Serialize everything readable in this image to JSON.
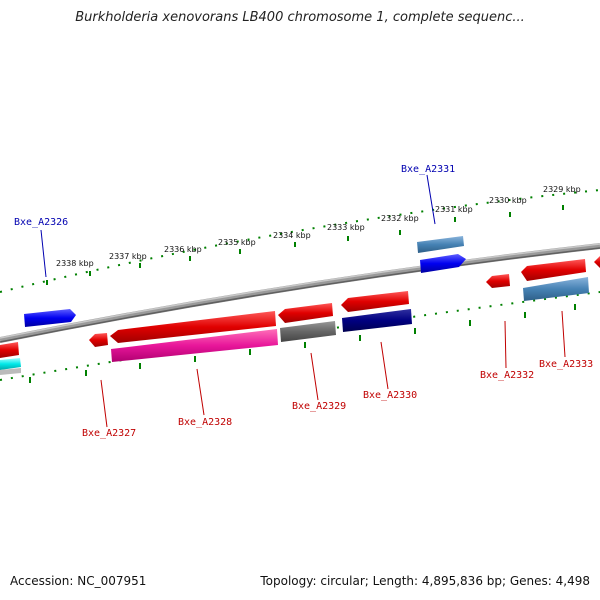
{
  "title": "Burkholderia xenovorans LB400 chromosome 1, complete sequenc...",
  "footer": {
    "accession": "Accession: NC_007951",
    "summary": "Topology: circular; Length: 4,895,836 bp; Genes: 4,498"
  },
  "scale_labels": [
    "2338 kbp",
    "2337 kbp",
    "2336 kbp",
    "2335 kbp",
    "2334 kbp",
    "2333 kbp",
    "2332 kbp",
    "2331 kbp",
    "2330 kbp",
    "2329 kbp"
  ],
  "gene_labels": {
    "top": [
      "Bxe_A2326",
      "Bxe_A2331"
    ],
    "bottom": [
      "Bxe_A2327",
      "Bxe_A2328",
      "Bxe_A2329",
      "Bxe_A2330",
      "Bxe_A2332",
      "Bxe_A2333"
    ]
  },
  "colors": {
    "backbone": "#808080",
    "forward_gene": "#0000ff",
    "steelblue_gene": "#4682b4",
    "red_gene": "#ff0000",
    "pink_gene": "#ff1493",
    "gray_gene": "#696969",
    "navy_gene": "#000080",
    "cyan_gene": "#00ffff",
    "tick": "#008000"
  }
}
